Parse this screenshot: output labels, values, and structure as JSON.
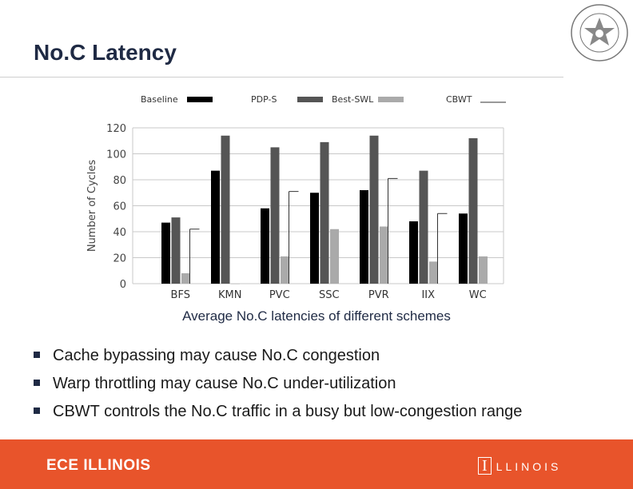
{
  "slide": {
    "title": "No.C Latency",
    "caption": "Average No.C latencies of different schemes",
    "bullets": [
      "Cache bypassing may cause No.C congestion",
      "Warp throttling may cause No.C under-utilization",
      "CBWT controls the No.C traffic in a busy but low-congestion range"
    ]
  },
  "footer": {
    "left_text": "ECE ILLINOIS",
    "right_mark": "I",
    "right_text": "LLINOIS"
  },
  "colors": {
    "accent": "#e8542b",
    "baseline": "#000000",
    "pdp_s": "#555555",
    "best_swl": "#aaaaaa",
    "cbwt": "#333333"
  },
  "chart_data": {
    "type": "bar",
    "ylabel": "Number of Cycles",
    "xlabel": "",
    "ylim": [
      0,
      120
    ],
    "yticks": [
      0,
      20,
      40,
      60,
      80,
      100,
      120
    ],
    "grid": true,
    "legend_position": "top",
    "categories": [
      "BFS",
      "KMN",
      "PVC",
      "SSC",
      "PVR",
      "IIX",
      "WC"
    ],
    "series": [
      {
        "name": "Baseline",
        "values": [
          47,
          87,
          58,
          70,
          72,
          48,
          54
        ]
      },
      {
        "name": "PDP-S",
        "values": [
          51,
          114,
          105,
          109,
          114,
          87,
          112
        ]
      },
      {
        "name": "Best-SWL",
        "values": [
          8,
          0,
          21,
          42,
          44,
          17,
          21
        ]
      },
      {
        "name": "CBWT",
        "values": [
          42,
          0,
          71,
          0,
          81,
          54,
          0
        ]
      }
    ]
  }
}
